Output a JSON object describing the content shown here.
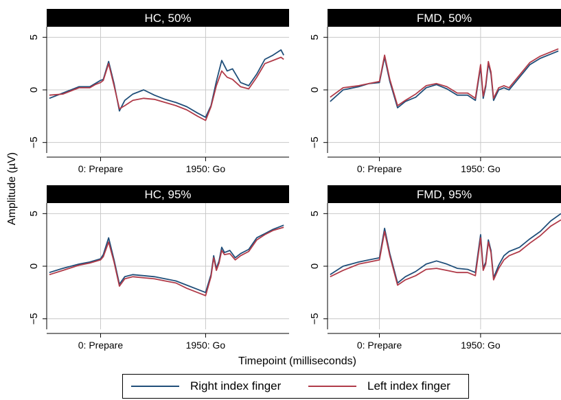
{
  "figure": {
    "y_axis_title": "Amplitude (µV)",
    "x_axis_title": "Timepoint (milliseconds)"
  },
  "colors": {
    "right": "#1f4e79",
    "left": "#b03a48",
    "grid": "#c8c8c8",
    "header": "#000000"
  },
  "legend": [
    {
      "label": "Right index finger",
      "color": "#1f4e79"
    },
    {
      "label": "Left index finger",
      "color": "#b03a48"
    }
  ],
  "chart_data": [
    {
      "type": "line",
      "title": "HC, 50%",
      "xlim": [
        -1000,
        3500
      ],
      "ylim": [
        -6,
        6
      ],
      "yticks": [
        -5,
        0,
        5
      ],
      "xticks": [
        {
          "value": 0,
          "label": "0: Prepare"
        },
        {
          "value": 1950,
          "label": "1950: Go"
        }
      ],
      "series": [
        {
          "name": "Right index finger",
          "x": [
            -950,
            -700,
            -400,
            -200,
            -100,
            0,
            50,
            150,
            250,
            350,
            450,
            600,
            800,
            1000,
            1200,
            1400,
            1600,
            1800,
            1950,
            2050,
            2150,
            2250,
            2350,
            2450,
            2600,
            2750,
            2900,
            3050,
            3200,
            3350,
            3400
          ],
          "y": [
            -0.8,
            -0.3,
            0.3,
            0.3,
            0.6,
            0.9,
            1.0,
            2.7,
            0.6,
            -2.0,
            -1.0,
            -0.4,
            0.0,
            -0.5,
            -0.9,
            -1.2,
            -1.6,
            -2.2,
            -2.6,
            -1.5,
            0.8,
            2.8,
            1.8,
            2.0,
            0.7,
            0.4,
            1.5,
            2.9,
            3.3,
            3.8,
            3.3
          ]
        },
        {
          "name": "Left index finger",
          "x": [
            -950,
            -700,
            -400,
            -200,
            -100,
            0,
            50,
            150,
            250,
            350,
            450,
            600,
            800,
            1000,
            1200,
            1400,
            1600,
            1800,
            1950,
            2050,
            2150,
            2250,
            2350,
            2450,
            2600,
            2750,
            2900,
            3050,
            3200,
            3350,
            3400
          ],
          "y": [
            -0.5,
            -0.4,
            0.2,
            0.2,
            0.5,
            0.7,
            0.9,
            2.5,
            0.4,
            -1.8,
            -1.5,
            -1.0,
            -0.8,
            -0.9,
            -1.2,
            -1.5,
            -1.9,
            -2.5,
            -2.9,
            -1.6,
            0.4,
            1.8,
            1.2,
            1.0,
            0.3,
            0.1,
            1.2,
            2.5,
            2.8,
            3.1,
            2.9
          ]
        }
      ]
    },
    {
      "type": "line",
      "title": "FMD, 50%",
      "xlim": [
        -1000,
        3500
      ],
      "ylim": [
        -6,
        6
      ],
      "yticks": [
        -5,
        0,
        5
      ],
      "xticks": [
        {
          "value": 0,
          "label": "0: Prepare"
        },
        {
          "value": 1950,
          "label": "1950: Go"
        }
      ],
      "series": [
        {
          "name": "Right index finger",
          "x": [
            -950,
            -700,
            -400,
            -200,
            0,
            100,
            200,
            350,
            500,
            700,
            900,
            1100,
            1300,
            1500,
            1700,
            1850,
            1950,
            2000,
            2050,
            2100,
            2150,
            2200,
            2300,
            2400,
            2500,
            2700,
            2900,
            3100,
            3300,
            3450
          ],
          "y": [
            -1.1,
            0.0,
            0.3,
            0.6,
            0.7,
            3.1,
            0.8,
            -1.7,
            -1.1,
            -0.7,
            0.2,
            0.5,
            0.1,
            -0.5,
            -0.5,
            -1.0,
            2.2,
            -0.8,
            0.3,
            2.5,
            1.5,
            -1.0,
            0.0,
            0.2,
            0.0,
            1.2,
            2.4,
            3.0,
            3.4,
            3.7
          ]
        },
        {
          "name": "Left index finger",
          "x": [
            -950,
            -700,
            -400,
            -200,
            0,
            100,
            200,
            350,
            500,
            700,
            900,
            1100,
            1300,
            1500,
            1700,
            1850,
            1950,
            2000,
            2050,
            2100,
            2150,
            2200,
            2300,
            2400,
            2500,
            2700,
            2900,
            3100,
            3300,
            3450
          ],
          "y": [
            -0.7,
            0.2,
            0.4,
            0.6,
            0.8,
            3.3,
            1.0,
            -1.5,
            -1.0,
            -0.4,
            0.4,
            0.6,
            0.3,
            -0.3,
            -0.3,
            -0.8,
            2.4,
            -0.6,
            0.5,
            2.7,
            1.7,
            -0.8,
            0.2,
            0.4,
            0.2,
            1.4,
            2.6,
            3.2,
            3.6,
            3.9
          ]
        }
      ]
    },
    {
      "type": "line",
      "title": "HC, 95%",
      "xlim": [
        -1000,
        3500
      ],
      "ylim": [
        -6,
        6
      ],
      "yticks": [
        -5,
        0,
        5
      ],
      "xticks": [
        {
          "value": 0,
          "label": "0: Prepare"
        },
        {
          "value": 1950,
          "label": "1950: Go"
        }
      ],
      "series": [
        {
          "name": "Right index finger",
          "x": [
            -950,
            -700,
            -400,
            -200,
            0,
            50,
            150,
            250,
            350,
            450,
            600,
            800,
            1000,
            1200,
            1400,
            1600,
            1800,
            1950,
            2050,
            2100,
            2150,
            2200,
            2250,
            2300,
            2400,
            2500,
            2600,
            2750,
            2900,
            3050,
            3200,
            3400
          ],
          "y": [
            -0.6,
            -0.2,
            0.2,
            0.4,
            0.7,
            1.1,
            2.7,
            0.6,
            -1.7,
            -1.0,
            -0.8,
            -0.9,
            -1.0,
            -1.2,
            -1.4,
            -1.8,
            -2.2,
            -2.5,
            -0.8,
            1.0,
            -0.2,
            0.5,
            1.8,
            1.3,
            1.5,
            0.8,
            1.2,
            1.6,
            2.7,
            3.1,
            3.5,
            3.9
          ]
        },
        {
          "name": "Left index finger",
          "x": [
            -950,
            -700,
            -400,
            -200,
            0,
            50,
            150,
            250,
            350,
            450,
            600,
            800,
            1000,
            1200,
            1400,
            1600,
            1800,
            1950,
            2050,
            2100,
            2150,
            2200,
            2250,
            2300,
            2400,
            2500,
            2600,
            2750,
            2900,
            3050,
            3200,
            3400
          ],
          "y": [
            -0.8,
            -0.4,
            0.1,
            0.3,
            0.6,
            0.9,
            2.3,
            0.4,
            -1.9,
            -1.2,
            -1.0,
            -1.1,
            -1.2,
            -1.4,
            -1.6,
            -2.1,
            -2.5,
            -2.8,
            -1.0,
            0.8,
            -0.4,
            0.3,
            1.5,
            1.1,
            1.2,
            0.6,
            1.0,
            1.4,
            2.5,
            3.0,
            3.4,
            3.7
          ]
        }
      ]
    },
    {
      "type": "line",
      "title": "FMD, 95%",
      "xlim": [
        -1000,
        3500
      ],
      "ylim": [
        -6,
        6
      ],
      "yticks": [
        -5,
        0,
        5
      ],
      "xticks": [
        {
          "value": 0,
          "label": "0: Prepare"
        },
        {
          "value": 1950,
          "label": "1950: Go"
        }
      ],
      "series": [
        {
          "name": "Right index finger",
          "x": [
            -950,
            -700,
            -400,
            -200,
            0,
            100,
            200,
            350,
            500,
            700,
            900,
            1100,
            1300,
            1500,
            1700,
            1850,
            1950,
            2000,
            2050,
            2100,
            2150,
            2200,
            2300,
            2400,
            2500,
            2700,
            2900,
            3100,
            3300,
            3500
          ],
          "y": [
            -0.8,
            0.0,
            0.4,
            0.6,
            0.8,
            3.6,
            1.2,
            -1.6,
            -1.0,
            -0.5,
            0.2,
            0.5,
            0.2,
            -0.2,
            -0.3,
            -0.6,
            3.0,
            -0.2,
            0.4,
            2.5,
            1.5,
            -1.1,
            0.1,
            1.0,
            1.4,
            1.8,
            2.6,
            3.3,
            4.3,
            5.0
          ]
        },
        {
          "name": "Left index finger",
          "x": [
            -950,
            -700,
            -400,
            -200,
            0,
            100,
            200,
            350,
            500,
            700,
            900,
            1100,
            1300,
            1500,
            1700,
            1850,
            1950,
            2000,
            2050,
            2100,
            2150,
            2200,
            2300,
            2400,
            2500,
            2700,
            2900,
            3100,
            3300,
            3500
          ],
          "y": [
            -1.0,
            -0.4,
            0.2,
            0.4,
            0.6,
            3.3,
            1.0,
            -1.8,
            -1.3,
            -0.9,
            -0.3,
            -0.2,
            -0.4,
            -0.6,
            -0.6,
            -0.9,
            2.7,
            -0.4,
            0.2,
            2.3,
            1.3,
            -1.3,
            -0.2,
            0.6,
            1.0,
            1.4,
            2.2,
            2.9,
            3.8,
            4.4
          ]
        }
      ]
    }
  ]
}
